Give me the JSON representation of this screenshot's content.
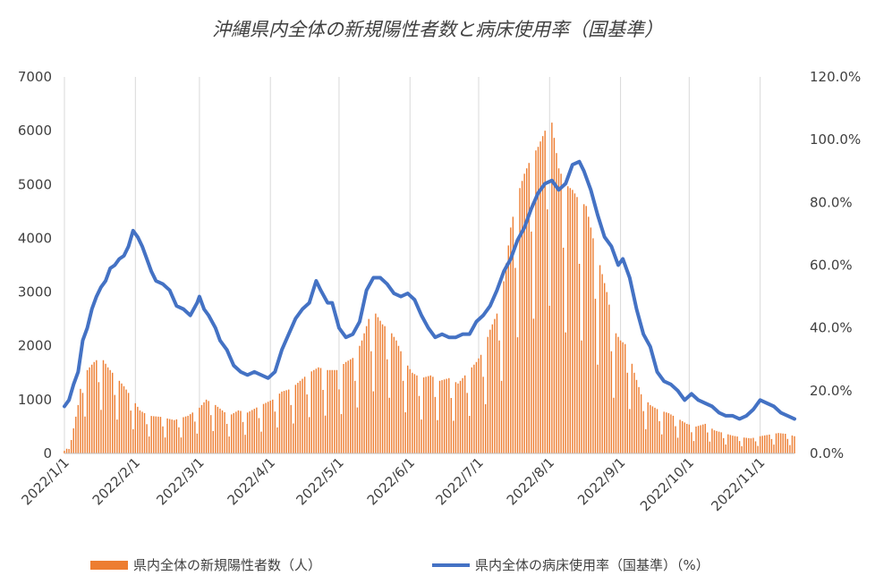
{
  "chart_data": {
    "type": "bar+line",
    "title": "沖縄県内全体の新規陽性者数と病床使用率（国基準）",
    "y_left": {
      "min": 0,
      "max": 7000,
      "step": 1000,
      "ticks": [
        "0",
        "1000",
        "2000",
        "3000",
        "4000",
        "5000",
        "6000",
        "7000"
      ]
    },
    "y_right": {
      "min": 0,
      "max": 120,
      "step": 20,
      "ticks": [
        "0.0%",
        "20.0%",
        "40.0%",
        "60.0%",
        "80.0%",
        "100.0%",
        "120.0%"
      ]
    },
    "x_range": [
      "2022-01-01",
      "2022-11-16"
    ],
    "x_ticks": [
      {
        "label": "2022/1/1",
        "date": "2022-01-01"
      },
      {
        "label": "2022/2/1",
        "date": "2022-02-01"
      },
      {
        "label": "2022/3/1",
        "date": "2022-03-01"
      },
      {
        "label": "2022/4/1",
        "date": "2022-04-01"
      },
      {
        "label": "2022/5/1",
        "date": "2022-05-01"
      },
      {
        "label": "2022/6/1",
        "date": "2022-06-01"
      },
      {
        "label": "2022/7/1",
        "date": "2022-07-01"
      },
      {
        "label": "2022/8/1",
        "date": "2022-08-01"
      },
      {
        "label": "2022/9/1",
        "date": "2022-09-01"
      },
      {
        "label": "2022/10/1",
        "date": "2022-10-01"
      },
      {
        "label": "2022/11/1",
        "date": "2022-11-01"
      }
    ],
    "series": [
      {
        "name": "県内全体の新規陽性者数（人）",
        "kind": "bar",
        "axis": "left",
        "color": "#ED7D31",
        "points": [
          [
            "2022-01-01",
            50
          ],
          [
            "2022-01-04",
            250
          ],
          [
            "2022-01-07",
            900
          ],
          [
            "2022-01-09",
            1500
          ],
          [
            "2022-01-11",
            1550
          ],
          [
            "2022-01-14",
            1700
          ],
          [
            "2022-01-17",
            1800
          ],
          [
            "2022-01-20",
            1600
          ],
          [
            "2022-01-24",
            1400
          ],
          [
            "2022-01-27",
            1250
          ],
          [
            "2022-01-31",
            1000
          ],
          [
            "2022-02-03",
            800
          ],
          [
            "2022-02-07",
            700
          ],
          [
            "2022-02-12",
            680
          ],
          [
            "2022-02-18",
            620
          ],
          [
            "2022-02-24",
            700
          ],
          [
            "2022-03-01",
            850
          ],
          [
            "2022-03-04",
            1000
          ],
          [
            "2022-03-08",
            900
          ],
          [
            "2022-03-14",
            700
          ],
          [
            "2022-03-18",
            800
          ],
          [
            "2022-03-22",
            760
          ],
          [
            "2022-03-28",
            900
          ],
          [
            "2022-04-02",
            1000
          ],
          [
            "2022-04-06",
            1150
          ],
          [
            "2022-04-10",
            1200
          ],
          [
            "2022-04-14",
            1350
          ],
          [
            "2022-04-18",
            1500
          ],
          [
            "2022-04-22",
            1600
          ],
          [
            "2022-04-26",
            1550
          ],
          [
            "2022-04-30",
            1550
          ],
          [
            "2022-05-04",
            1700
          ],
          [
            "2022-05-08",
            1800
          ],
          [
            "2022-05-11",
            2100
          ],
          [
            "2022-05-14",
            2500
          ],
          [
            "2022-05-17",
            2600
          ],
          [
            "2022-05-20",
            2400
          ],
          [
            "2022-05-23",
            2300
          ],
          [
            "2022-05-26",
            2100
          ],
          [
            "2022-05-30",
            1700
          ],
          [
            "2022-06-02",
            1500
          ],
          [
            "2022-06-06",
            1400
          ],
          [
            "2022-06-10",
            1450
          ],
          [
            "2022-06-14",
            1350
          ],
          [
            "2022-06-18",
            1400
          ],
          [
            "2022-06-22",
            1300
          ],
          [
            "2022-06-26",
            1500
          ],
          [
            "2022-06-30",
            1700
          ],
          [
            "2022-07-03",
            1900
          ],
          [
            "2022-07-06",
            2300
          ],
          [
            "2022-07-09",
            2600
          ],
          [
            "2022-07-12",
            3200
          ],
          [
            "2022-07-15",
            4200
          ],
          [
            "2022-07-18",
            4800
          ],
          [
            "2022-07-21",
            5200
          ],
          [
            "2022-07-24",
            5500
          ],
          [
            "2022-07-27",
            5700
          ],
          [
            "2022-07-30",
            6000
          ],
          [
            "2022-08-02",
            6150
          ],
          [
            "2022-08-05",
            5300
          ],
          [
            "2022-08-08",
            5000
          ],
          [
            "2022-08-11",
            4900
          ],
          [
            "2022-08-14",
            4700
          ],
          [
            "2022-08-17",
            4600
          ],
          [
            "2022-08-20",
            4000
          ],
          [
            "2022-08-23",
            3500
          ],
          [
            "2022-08-26",
            3000
          ],
          [
            "2022-08-29",
            2300
          ],
          [
            "2022-09-01",
            2100
          ],
          [
            "2022-09-04",
            2000
          ],
          [
            "2022-09-07",
            1500
          ],
          [
            "2022-09-10",
            1100
          ],
          [
            "2022-09-14",
            900
          ],
          [
            "2022-09-18",
            800
          ],
          [
            "2022-09-22",
            750
          ],
          [
            "2022-09-26",
            650
          ],
          [
            "2022-09-30",
            550
          ],
          [
            "2022-10-04",
            500
          ],
          [
            "2022-10-08",
            550
          ],
          [
            "2022-10-12",
            430
          ],
          [
            "2022-10-16",
            380
          ],
          [
            "2022-10-20",
            330
          ],
          [
            "2022-10-24",
            300
          ],
          [
            "2022-10-28",
            280
          ],
          [
            "2022-11-01",
            320
          ],
          [
            "2022-11-05",
            350
          ],
          [
            "2022-11-09",
            380
          ],
          [
            "2022-11-13",
            360
          ],
          [
            "2022-11-16",
            320
          ]
        ]
      },
      {
        "name": "県内全体の病床使用率（国基準）（%）",
        "kind": "line",
        "axis": "right",
        "color": "#4472C4",
        "points": [
          [
            "2022-01-01",
            15
          ],
          [
            "2022-01-03",
            17
          ],
          [
            "2022-01-05",
            22
          ],
          [
            "2022-01-07",
            26
          ],
          [
            "2022-01-09",
            36
          ],
          [
            "2022-01-11",
            40
          ],
          [
            "2022-01-13",
            46
          ],
          [
            "2022-01-15",
            50
          ],
          [
            "2022-01-17",
            53
          ],
          [
            "2022-01-19",
            55
          ],
          [
            "2022-01-21",
            59
          ],
          [
            "2022-01-23",
            60
          ],
          [
            "2022-01-25",
            62
          ],
          [
            "2022-01-27",
            63
          ],
          [
            "2022-01-29",
            66
          ],
          [
            "2022-01-31",
            71
          ],
          [
            "2022-02-02",
            69
          ],
          [
            "2022-02-04",
            66
          ],
          [
            "2022-02-06",
            62
          ],
          [
            "2022-02-08",
            58
          ],
          [
            "2022-02-10",
            55
          ],
          [
            "2022-02-13",
            54
          ],
          [
            "2022-02-16",
            52
          ],
          [
            "2022-02-19",
            47
          ],
          [
            "2022-02-22",
            46
          ],
          [
            "2022-02-25",
            44
          ],
          [
            "2022-02-28",
            48
          ],
          [
            "2022-03-01",
            50
          ],
          [
            "2022-03-03",
            46
          ],
          [
            "2022-03-05",
            44
          ],
          [
            "2022-03-08",
            40
          ],
          [
            "2022-03-10",
            36
          ],
          [
            "2022-03-13",
            33
          ],
          [
            "2022-03-16",
            28
          ],
          [
            "2022-03-19",
            26
          ],
          [
            "2022-03-22",
            25
          ],
          [
            "2022-03-25",
            26
          ],
          [
            "2022-03-28",
            25
          ],
          [
            "2022-03-31",
            24
          ],
          [
            "2022-04-03",
            26
          ],
          [
            "2022-04-06",
            33
          ],
          [
            "2022-04-09",
            38
          ],
          [
            "2022-04-12",
            43
          ],
          [
            "2022-04-15",
            46
          ],
          [
            "2022-04-18",
            48
          ],
          [
            "2022-04-21",
            55
          ],
          [
            "2022-04-23",
            52
          ],
          [
            "2022-04-26",
            48
          ],
          [
            "2022-04-28",
            48
          ],
          [
            "2022-05-01",
            40
          ],
          [
            "2022-05-04",
            37
          ],
          [
            "2022-05-07",
            38
          ],
          [
            "2022-05-10",
            42
          ],
          [
            "2022-05-13",
            52
          ],
          [
            "2022-05-16",
            56
          ],
          [
            "2022-05-19",
            56
          ],
          [
            "2022-05-22",
            54
          ],
          [
            "2022-05-25",
            51
          ],
          [
            "2022-05-28",
            50
          ],
          [
            "2022-05-31",
            51
          ],
          [
            "2022-06-03",
            49
          ],
          [
            "2022-06-06",
            44
          ],
          [
            "2022-06-09",
            40
          ],
          [
            "2022-06-12",
            37
          ],
          [
            "2022-06-15",
            38
          ],
          [
            "2022-06-18",
            37
          ],
          [
            "2022-06-21",
            37
          ],
          [
            "2022-06-24",
            38
          ],
          [
            "2022-06-27",
            38
          ],
          [
            "2022-06-30",
            42
          ],
          [
            "2022-07-03",
            44
          ],
          [
            "2022-07-06",
            47
          ],
          [
            "2022-07-09",
            52
          ],
          [
            "2022-07-12",
            58
          ],
          [
            "2022-07-15",
            62
          ],
          [
            "2022-07-18",
            68
          ],
          [
            "2022-07-21",
            72
          ],
          [
            "2022-07-24",
            78
          ],
          [
            "2022-07-27",
            83
          ],
          [
            "2022-07-30",
            86
          ],
          [
            "2022-08-02",
            87
          ],
          [
            "2022-08-05",
            84
          ],
          [
            "2022-08-08",
            86
          ],
          [
            "2022-08-11",
            92
          ],
          [
            "2022-08-14",
            93
          ],
          [
            "2022-08-16",
            90
          ],
          [
            "2022-08-19",
            84
          ],
          [
            "2022-08-22",
            76
          ],
          [
            "2022-08-25",
            69
          ],
          [
            "2022-08-28",
            66
          ],
          [
            "2022-08-31",
            60
          ],
          [
            "2022-09-02",
            62
          ],
          [
            "2022-09-05",
            56
          ],
          [
            "2022-09-08",
            46
          ],
          [
            "2022-09-11",
            38
          ],
          [
            "2022-09-14",
            34
          ],
          [
            "2022-09-17",
            26
          ],
          [
            "2022-09-20",
            23
          ],
          [
            "2022-09-23",
            22
          ],
          [
            "2022-09-26",
            20
          ],
          [
            "2022-09-29",
            17
          ],
          [
            "2022-10-02",
            19
          ],
          [
            "2022-10-05",
            17
          ],
          [
            "2022-10-08",
            16
          ],
          [
            "2022-10-11",
            15
          ],
          [
            "2022-10-14",
            13
          ],
          [
            "2022-10-17",
            12
          ],
          [
            "2022-10-20",
            12
          ],
          [
            "2022-10-23",
            11
          ],
          [
            "2022-10-26",
            12
          ],
          [
            "2022-10-29",
            14
          ],
          [
            "2022-11-01",
            17
          ],
          [
            "2022-11-04",
            16
          ],
          [
            "2022-11-07",
            15
          ],
          [
            "2022-11-10",
            13
          ],
          [
            "2022-11-13",
            12
          ],
          [
            "2022-11-16",
            11
          ]
        ]
      }
    ],
    "legend": [
      {
        "label": "県内全体の新規陽性者数（人）",
        "kind": "bar",
        "color": "#ED7D31"
      },
      {
        "label": "県内全体の病床使用率（国基準）（%）",
        "kind": "line",
        "color": "#4472C4"
      }
    ],
    "legend_position": "bottom",
    "grid": "vertical-x"
  }
}
